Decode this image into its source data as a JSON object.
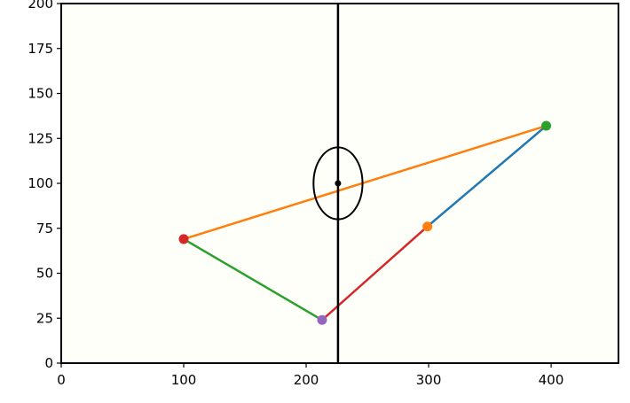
{
  "chart_data": {
    "type": "line",
    "title": "",
    "xlabel": "",
    "ylabel": "",
    "xlim": [
      0,
      455
    ],
    "ylim": [
      0,
      200
    ],
    "grid": false,
    "x_ticks": [
      0,
      100,
      200,
      300,
      400
    ],
    "y_ticks": [
      0,
      25,
      50,
      75,
      100,
      125,
      150,
      175,
      200
    ],
    "background": "#fffff9",
    "series": [
      {
        "color": "#1f77b4",
        "x": [
          299,
          396
        ],
        "y": [
          76,
          132
        ]
      },
      {
        "color": "#ff7f0e",
        "x": [
          100,
          396
        ],
        "y": [
          69,
          132
        ]
      },
      {
        "color": "#2ca02c",
        "x": [
          100,
          213
        ],
        "y": [
          69,
          24
        ]
      },
      {
        "color": "#d62728",
        "x": [
          213,
          299
        ],
        "y": [
          24,
          76
        ]
      }
    ],
    "points": [
      {
        "x": 396,
        "y": 132,
        "color": "#2ca02c"
      },
      {
        "x": 299,
        "y": 76,
        "color": "#ff7f0e"
      },
      {
        "x": 100,
        "y": 69,
        "color": "#d62728"
      },
      {
        "x": 213,
        "y": 24,
        "color": "#9467bd"
      }
    ],
    "vertical_line": {
      "x": 226,
      "color": "#000000"
    },
    "ellipse": {
      "cx": 226,
      "cy": 100,
      "rx": 20,
      "ry": 20,
      "color": "#000000"
    },
    "center_point": {
      "x": 226,
      "y": 100,
      "color": "#000000"
    }
  }
}
